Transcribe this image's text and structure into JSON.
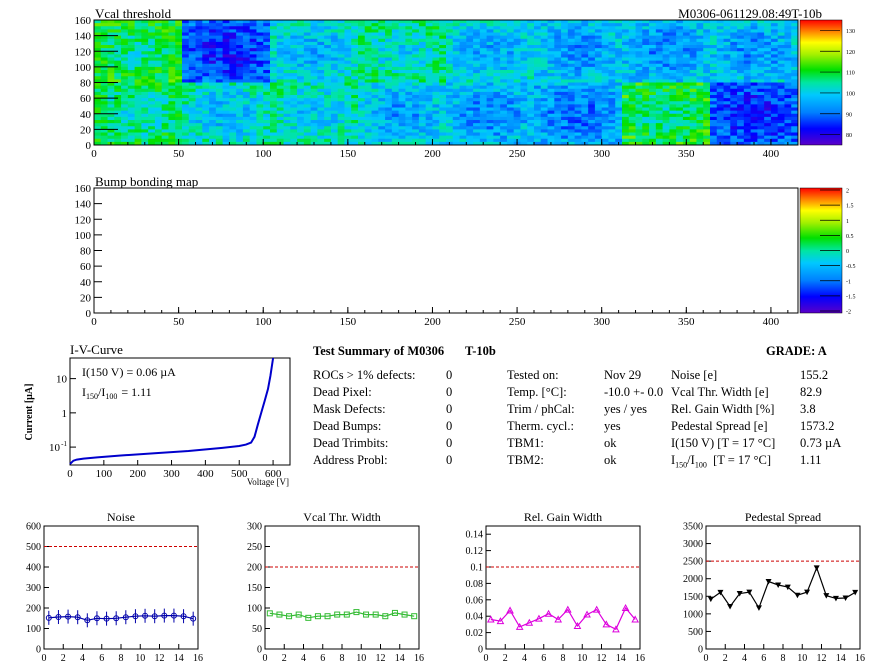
{
  "header": {
    "module_id": "M0306-061129.08:49T-10b"
  },
  "chart_data": [
    {
      "type": "heatmap",
      "title": "Vcal threshold",
      "xlim": [
        0,
        416
      ],
      "ylim": [
        0,
        160
      ],
      "x_ticks": [
        0,
        50,
        100,
        150,
        200,
        250,
        300,
        350,
        400
      ],
      "y_ticks": [
        0,
        20,
        40,
        60,
        80,
        100,
        120,
        140,
        160
      ],
      "colorbar_ticks": [
        80,
        90,
        100,
        110,
        120,
        130
      ],
      "roc_columns_top": [
        0,
        52,
        104,
        156,
        208,
        260,
        312,
        364
      ],
      "roc_columns_bottom": [
        0,
        52,
        104,
        156,
        208,
        260,
        312,
        364
      ],
      "roc_mean_top": [
        112,
        92,
        104,
        108,
        103,
        101,
        100,
        101
      ],
      "roc_mean_bottom": [
        110,
        105,
        106,
        102,
        100,
        98,
        112,
        92
      ],
      "roc_split_row": 80
    },
    {
      "type": "heatmap",
      "title": "Bump bonding map",
      "xlim": [
        0,
        416
      ],
      "ylim": [
        0,
        160
      ],
      "x_ticks": [
        0,
        50,
        100,
        150,
        200,
        250,
        300,
        350,
        400
      ],
      "y_ticks": [
        0,
        20,
        40,
        60,
        80,
        100,
        120,
        140,
        160
      ],
      "colorbar_ticks": [
        "2",
        "1.5",
        "1",
        "0.5",
        "0",
        "-0.5",
        "-1",
        "-1.5",
        "-2"
      ]
    },
    {
      "type": "line",
      "title": "I-V-Curve",
      "xlabel": "Voltage [V]",
      "ylabel": "Current [µA]",
      "xlim": [
        0,
        650
      ],
      "ylim_log": [
        0.03,
        40
      ],
      "x_ticks": [
        0,
        100,
        200,
        300,
        400,
        500,
        600
      ],
      "y_ticks": [
        "10^{-1}",
        "1",
        "10"
      ],
      "annotation_1": "I(150 V) = 0.06 µA",
      "annotation_2_prefix": "I",
      "annotation_2_sub1": "150",
      "annotation_2_sep": "/I",
      "annotation_2_sub2": "100",
      "annotation_2_value": "=  1.11",
      "points": [
        [
          0,
          0.032
        ],
        [
          5,
          0.036
        ],
        [
          10,
          0.04
        ],
        [
          20,
          0.043
        ],
        [
          40,
          0.046
        ],
        [
          80,
          0.05
        ],
        [
          150,
          0.057
        ],
        [
          250,
          0.066
        ],
        [
          350,
          0.077
        ],
        [
          450,
          0.095
        ],
        [
          500,
          0.108
        ],
        [
          520,
          0.118
        ],
        [
          535,
          0.135
        ],
        [
          545,
          0.2
        ],
        [
          555,
          0.45
        ],
        [
          565,
          1.0
        ],
        [
          575,
          2.2
        ],
        [
          585,
          5
        ],
        [
          592,
          12
        ],
        [
          600,
          40
        ]
      ]
    },
    {
      "type": "line",
      "title": "Noise",
      "xlim": [
        0,
        16
      ],
      "ylim": [
        0,
        600
      ],
      "x_ticks": [
        0,
        2,
        4,
        6,
        8,
        10,
        12,
        14,
        16
      ],
      "y_ticks": [
        0,
        100,
        200,
        300,
        400,
        500,
        600
      ],
      "threshold": 500,
      "x": [
        0.5,
        1.5,
        2.5,
        3.5,
        4.5,
        5.5,
        6.5,
        7.5,
        8.5,
        9.5,
        10.5,
        11.5,
        12.5,
        13.5,
        14.5,
        15.5
      ],
      "values": [
        152,
        156,
        158,
        155,
        140,
        150,
        148,
        150,
        155,
        160,
        162,
        160,
        163,
        163,
        160,
        148
      ]
    },
    {
      "type": "line",
      "title": "Vcal Thr. Width",
      "xlim": [
        0,
        16
      ],
      "ylim": [
        0,
        300
      ],
      "x_ticks": [
        0,
        2,
        4,
        6,
        8,
        10,
        12,
        14,
        16
      ],
      "y_ticks": [
        0,
        50,
        100,
        150,
        200,
        250,
        300
      ],
      "threshold": 200,
      "x": [
        0.5,
        1.5,
        2.5,
        3.5,
        4.5,
        5.5,
        6.5,
        7.5,
        8.5,
        9.5,
        10.5,
        11.5,
        12.5,
        13.5,
        14.5,
        15.5
      ],
      "values": [
        87,
        84,
        80,
        84,
        76,
        80,
        80,
        84,
        84,
        90,
        84,
        84,
        80,
        88,
        84,
        80
      ]
    },
    {
      "type": "line",
      "title": "Rel. Gain Width",
      "xlim": [
        0,
        16
      ],
      "ylim": [
        0,
        0.15
      ],
      "x_ticks": [
        0,
        2,
        4,
        6,
        8,
        10,
        12,
        14,
        16
      ],
      "y_ticks": [
        "0",
        "0.02",
        "0.04",
        "0.06",
        "0.08",
        "0.1",
        "0.12",
        "0.14"
      ],
      "threshold": 0.1,
      "x": [
        0.5,
        1.5,
        2.5,
        3.5,
        4.5,
        5.5,
        6.5,
        7.5,
        8.5,
        9.5,
        10.5,
        11.5,
        12.5,
        13.5,
        14.5,
        15.5
      ],
      "values": [
        0.036,
        0.034,
        0.047,
        0.027,
        0.032,
        0.037,
        0.043,
        0.036,
        0.048,
        0.028,
        0.042,
        0.048,
        0.03,
        0.024,
        0.05,
        0.036
      ]
    },
    {
      "type": "line",
      "title": "Pedestal Spread",
      "xlim": [
        0,
        16
      ],
      "ylim": [
        0,
        3500
      ],
      "x_ticks": [
        0,
        2,
        4,
        6,
        8,
        10,
        12,
        14,
        16
      ],
      "y_ticks": [
        0,
        500,
        1000,
        1500,
        2000,
        2500,
        3000,
        3500
      ],
      "threshold": 2500,
      "x": [
        0.5,
        1.5,
        2.5,
        3.5,
        4.5,
        5.5,
        6.5,
        7.5,
        8.5,
        9.5,
        10.5,
        11.5,
        12.5,
        13.5,
        14.5,
        15.5
      ],
      "values": [
        1420,
        1610,
        1210,
        1580,
        1620,
        1170,
        1920,
        1820,
        1760,
        1530,
        1620,
        2310,
        1520,
        1440,
        1450,
        1610
      ]
    }
  ],
  "summary": {
    "title": "Test Summary of M0306",
    "tag": "T-10b",
    "grade": "GRADE:  A",
    "left_rows": [
      {
        "label": "ROCs > 1% defects:",
        "value": "0"
      },
      {
        "label": "Dead Pixel:",
        "value": "0"
      },
      {
        "label": "Mask Defects:",
        "value": "0"
      },
      {
        "label": "Dead Bumps:",
        "value": "0"
      },
      {
        "label": "Dead Trimbits:",
        "value": "0"
      },
      {
        "label": "Address Probl:",
        "value": "0"
      }
    ],
    "mid_rows": [
      {
        "label": "Tested on:",
        "value": "Nov 29"
      },
      {
        "label": "Temp. [°C]:",
        "value": "-10.0 +- 0.0"
      },
      {
        "label": "Trim / phCal:",
        "value": "yes / yes"
      },
      {
        "label": "Therm. cycl.:",
        "value": "yes"
      },
      {
        "label": "TBM1:",
        "value": "ok"
      },
      {
        "label": "TBM2:",
        "value": "ok"
      }
    ],
    "right_rows": [
      {
        "label": "Noise [e]",
        "value": "155.2"
      },
      {
        "label": "Vcal Thr. Width [e]",
        "value": "82.9"
      },
      {
        "label": "Rel. Gain Width [%]",
        "value": "3.8"
      },
      {
        "label": "Pedestal Spread [e]",
        "value": "1573.2"
      },
      {
        "label": "I(150 V) [T = 17 °C]",
        "value": "0.73 µA"
      }
    ],
    "ratio_row": {
      "prefix": "I",
      "sub1": "150",
      "sep": "/I",
      "sub2": "100",
      "suffix": "  [T = 17 °C]",
      "value": "1.11"
    }
  },
  "colors": {
    "series": "#0000cc",
    "noise": "#0000aa",
    "vcal": "#33bb33",
    "gain": "#dd00dd",
    "pedestal": "#000000",
    "threshold": "#cc0000"
  }
}
